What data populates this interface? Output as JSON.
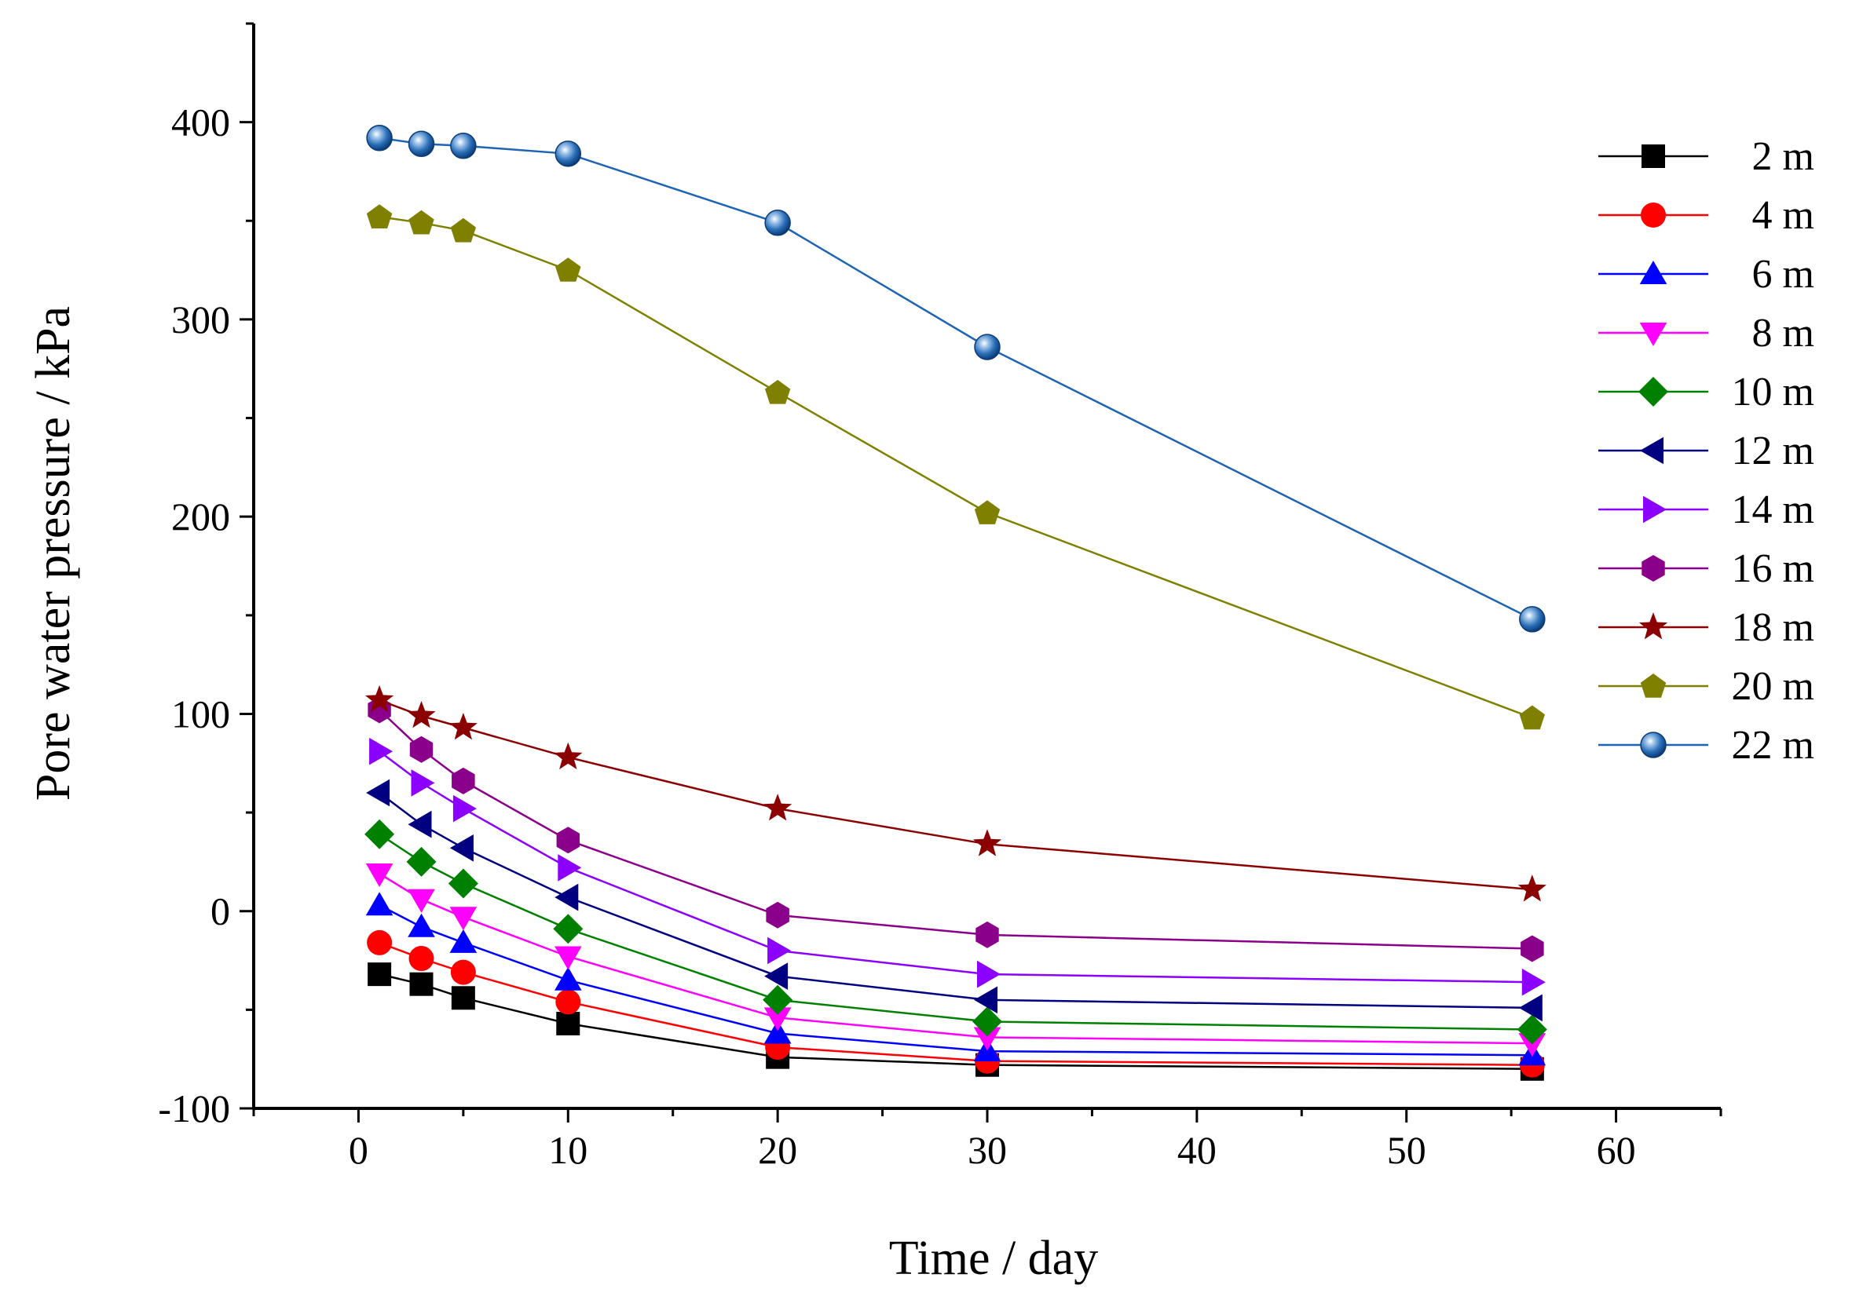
{
  "chart_data": {
    "type": "line",
    "title": "",
    "xlabel": "Time / day",
    "ylabel": "Pore water pressure / kPa",
    "xlim": [
      -5,
      65
    ],
    "ylim": [
      -100,
      450
    ],
    "xticks": [
      0,
      10,
      20,
      30,
      40,
      50,
      60
    ],
    "yticks": [
      -100,
      0,
      100,
      200,
      300,
      400
    ],
    "grid": false,
    "legend_position": "top-right",
    "x": [
      1,
      3,
      5,
      10,
      20,
      30,
      56
    ],
    "series": [
      {
        "name": "2 m",
        "marker": "square",
        "color": "#000000",
        "values": [
          -32,
          -37,
          -44,
          -57,
          -74,
          -78,
          -80
        ]
      },
      {
        "name": "4 m",
        "marker": "circle",
        "color": "#ff0000",
        "values": [
          -16,
          -24,
          -31,
          -46,
          -69,
          -76,
          -78
        ]
      },
      {
        "name": "6 m",
        "marker": "triangle-up",
        "color": "#0000ff",
        "values": [
          3,
          -8,
          -16,
          -35,
          -62,
          -71,
          -73
        ]
      },
      {
        "name": "8 m",
        "marker": "triangle-down",
        "color": "#ff00ff",
        "values": [
          19,
          6,
          -3,
          -23,
          -54,
          -64,
          -67
        ]
      },
      {
        "name": "10 m",
        "marker": "diamond",
        "color": "#008000",
        "values": [
          39,
          25,
          14,
          -9,
          -45,
          -56,
          -60
        ]
      },
      {
        "name": "12 m",
        "marker": "triangle-left",
        "color": "#000080",
        "values": [
          60,
          44,
          32,
          7,
          -33,
          -45,
          -49
        ]
      },
      {
        "name": "14 m",
        "marker": "triangle-right",
        "color": "#8b00ff",
        "values": [
          81,
          65,
          52,
          22,
          -20,
          -32,
          -36
        ]
      },
      {
        "name": "16 m",
        "marker": "hexagon",
        "color": "#8b008b",
        "values": [
          102,
          82,
          66,
          36,
          -2,
          -12,
          -19
        ]
      },
      {
        "name": "18 m",
        "marker": "star",
        "color": "#8b0000",
        "values": [
          107,
          99,
          93,
          78,
          52,
          34,
          11
        ]
      },
      {
        "name": "20 m",
        "marker": "pentagon",
        "color": "#808000",
        "values": [
          352,
          349,
          345,
          325,
          263,
          202,
          98
        ]
      },
      {
        "name": "22 m",
        "marker": "sphere",
        "color": "#1e64b4",
        "values": [
          392,
          389,
          388,
          384,
          349,
          286,
          148
        ]
      }
    ]
  }
}
